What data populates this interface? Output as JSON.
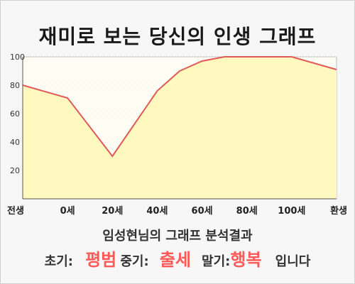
{
  "title": "재미로 보는 당신의 인생 그래프",
  "chart_data": {
    "type": "area",
    "categories": [
      "전생",
      "0세",
      "20세",
      "40세",
      "60세",
      "80세",
      "100세",
      "환생"
    ],
    "y_ticks": [
      20,
      40,
      60,
      80,
      100
    ],
    "ylim": [
      0,
      100
    ],
    "xlim": [
      0,
      7
    ],
    "series": [
      {
        "points": [
          {
            "x": 0,
            "y": 80
          },
          {
            "x": 1,
            "y": 71
          },
          {
            "x": 2,
            "y": 30
          },
          {
            "x": 3,
            "y": 76
          },
          {
            "x": 3.5,
            "y": 90
          },
          {
            "x": 4,
            "y": 97
          },
          {
            "x": 4.5,
            "y": 100
          },
          {
            "x": 5,
            "y": 100
          },
          {
            "x": 6,
            "y": 100
          },
          {
            "x": 7,
            "y": 91
          }
        ]
      }
    ],
    "grid": true,
    "colors": {
      "line": "#e05a5a",
      "fill": "#fff9bf",
      "plot_background": "#fefdf3",
      "grid": "#dddddd"
    }
  },
  "summary": "임성현님의 그래프 분석결과",
  "result": {
    "early_label": "초기:",
    "early_value": "평범",
    "middle_label": "중기:",
    "middle_value": "출세",
    "late_label": "말기:",
    "late_value": "행복",
    "suffix": "입니다"
  }
}
